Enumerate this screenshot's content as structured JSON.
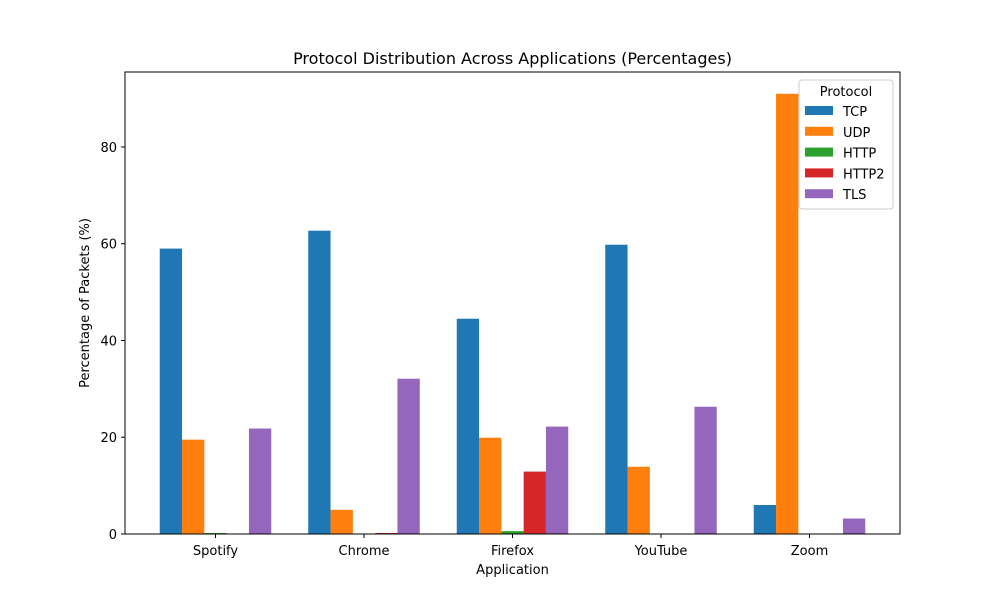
{
  "chart_data": {
    "type": "bar",
    "title": "Protocol Distribution Across Applications (Percentages)",
    "xlabel": "Application",
    "ylabel": "Percentage of Packets (%)",
    "categories": [
      "Spotify",
      "Chrome",
      "Firefox",
      "YouTube",
      "Zoom"
    ],
    "ylim": [
      0,
      95.5
    ],
    "yticks": [
      0,
      20,
      40,
      60,
      80
    ],
    "grid": false,
    "legend": {
      "title": "Protocol",
      "placement": "top-right"
    },
    "series": [
      {
        "name": "TCP",
        "color": "#1f77b4",
        "values": [
          59.0,
          62.7,
          44.5,
          59.8,
          6.0
        ]
      },
      {
        "name": "UDP",
        "color": "#ff7f0e",
        "values": [
          19.5,
          5.0,
          19.9,
          13.9,
          91.0
        ]
      },
      {
        "name": "HTTP",
        "color": "#2ca02c",
        "values": [
          0.2,
          0.0,
          0.6,
          0.0,
          0.0
        ]
      },
      {
        "name": "HTTP2",
        "color": "#d62728",
        "values": [
          0.0,
          0.2,
          12.9,
          0.0,
          0.0
        ]
      },
      {
        "name": "TLS",
        "color": "#9467bd",
        "values": [
          21.8,
          32.1,
          22.2,
          26.3,
          3.2
        ]
      }
    ]
  }
}
